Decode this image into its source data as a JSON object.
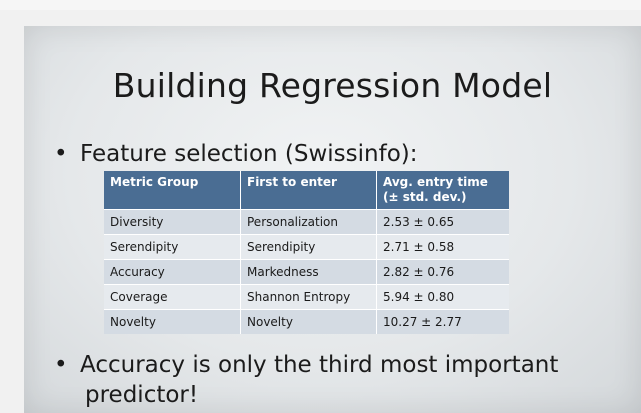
{
  "slide": {
    "title": "Building Regression Model",
    "bullet_1": "Feature selection (Swissinfo):",
    "bullet_2_line1": "Accuracy is only the third most important",
    "bullet_2_line2": "predictor!"
  },
  "table": {
    "headers": [
      "Metric Group",
      "First to enter",
      "Avg. entry time",
      "(± std. dev.)"
    ],
    "rows": [
      [
        "Diversity",
        "Personalization",
        "2.53 ± 0.65"
      ],
      [
        "Serendipity",
        "Serendipity",
        "2.71 ± 0.58"
      ],
      [
        "Accuracy",
        "Markedness",
        "2.82 ± 0.76"
      ],
      [
        "Coverage",
        "Shannon Entropy",
        "5.94 ± 0.80"
      ],
      [
        "Novelty",
        "Novelty",
        "10.27 ± 2.77"
      ]
    ]
  },
  "colors": {
    "header_bg": "#4a6d93",
    "row_dark": "#d4dbe3",
    "row_light": "#e6eaee"
  }
}
